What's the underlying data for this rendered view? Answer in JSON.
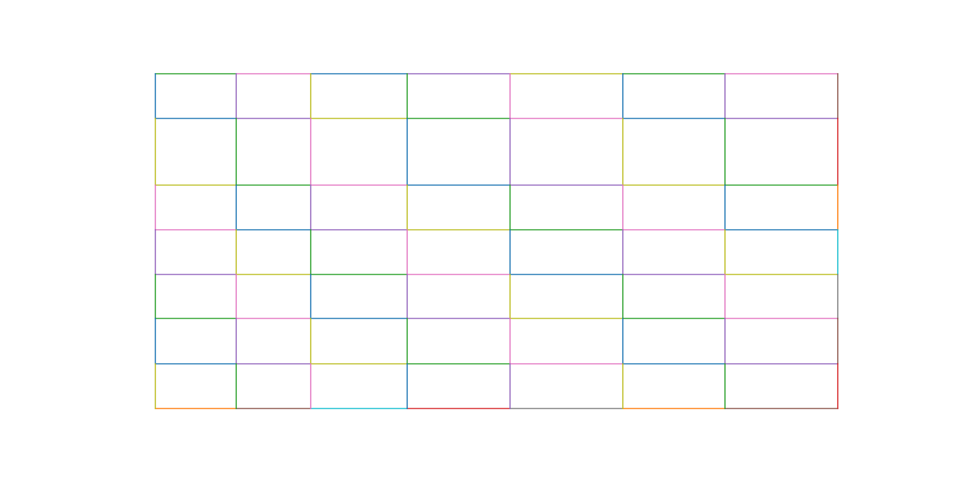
{
  "palette": {
    "blue": "#1f77b4",
    "orange": "#ff7f0e",
    "green": "#2ca02c",
    "red": "#d62728",
    "purple": "#9467bd",
    "brown": "#8c564b",
    "pink": "#e377c2",
    "gray": "#7f7f7f",
    "olive": "#bcbd22",
    "cyan": "#17becf"
  },
  "grid": {
    "columns": 7,
    "rows": 7,
    "horizontal_segment_colors": [
      [
        "green",
        "pink",
        "blue",
        "purple",
        "olive",
        "green",
        "pink"
      ],
      [
        "blue",
        "purple",
        "olive",
        "green",
        "pink",
        "blue",
        "purple"
      ],
      [
        "olive",
        "green",
        "pink",
        "blue",
        "purple",
        "olive",
        "green"
      ],
      [
        "pink",
        "blue",
        "purple",
        "olive",
        "green",
        "pink",
        "blue"
      ],
      [
        "purple",
        "olive",
        "green",
        "pink",
        "blue",
        "purple",
        "olive"
      ],
      [
        "green",
        "pink",
        "blue",
        "purple",
        "olive",
        "green",
        "pink"
      ],
      [
        "blue",
        "purple",
        "olive",
        "green",
        "pink",
        "blue",
        "purple"
      ],
      [
        "orange",
        "brown",
        "cyan",
        "red",
        "gray",
        "orange",
        "brown"
      ]
    ],
    "vertical_segment_colors": [
      [
        "blue",
        "olive",
        "pink",
        "purple",
        "green",
        "blue",
        "olive"
      ],
      [
        "purple",
        "green",
        "blue",
        "olive",
        "pink",
        "purple",
        "green"
      ],
      [
        "olive",
        "pink",
        "purple",
        "green",
        "blue",
        "olive",
        "pink"
      ],
      [
        "green",
        "blue",
        "olive",
        "pink",
        "purple",
        "green",
        "blue"
      ],
      [
        "pink",
        "purple",
        "green",
        "blue",
        "olive",
        "pink",
        "purple"
      ],
      [
        "blue",
        "olive",
        "pink",
        "purple",
        "green",
        "blue",
        "olive"
      ],
      [
        "purple",
        "green",
        "blue",
        "olive",
        "pink",
        "purple",
        "green"
      ],
      [
        "brown",
        "red",
        "orange",
        "cyan",
        "gray",
        "brown",
        "red"
      ]
    ]
  }
}
